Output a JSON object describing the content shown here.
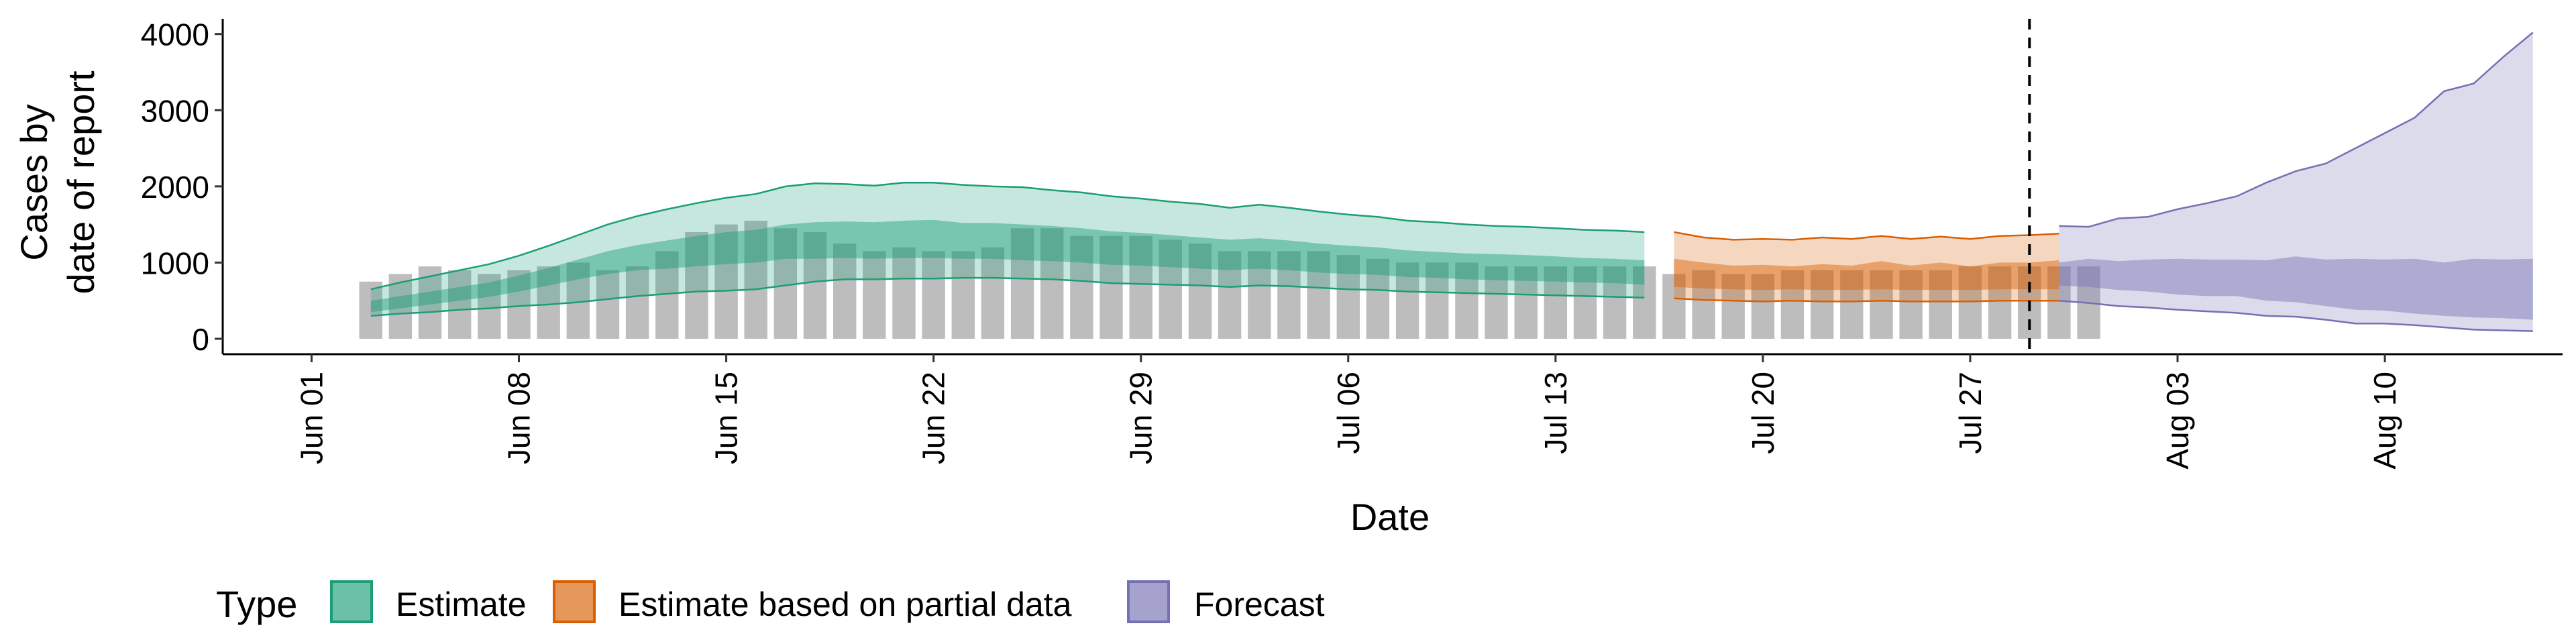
{
  "chart_data": {
    "type": "bar",
    "title": "",
    "xlabel": "Date",
    "ylabel_lines": [
      "Cases by",
      "date of report"
    ],
    "ylim": [
      0,
      4200
    ],
    "y_ticks": [
      0,
      1000,
      2000,
      3000,
      4000
    ],
    "x_range": [
      "2020-05-29",
      "2020-08-16"
    ],
    "x_ticks": [
      {
        "date": "2020-06-01",
        "label": "Jun 01"
      },
      {
        "date": "2020-06-08",
        "label": "Jun 08"
      },
      {
        "date": "2020-06-15",
        "label": "Jun 15"
      },
      {
        "date": "2020-06-22",
        "label": "Jun 22"
      },
      {
        "date": "2020-06-29",
        "label": "Jun 29"
      },
      {
        "date": "2020-07-06",
        "label": "Jul 06"
      },
      {
        "date": "2020-07-13",
        "label": "Jul 13"
      },
      {
        "date": "2020-07-20",
        "label": "Jul 20"
      },
      {
        "date": "2020-07-27",
        "label": "Jul 27"
      },
      {
        "date": "2020-08-03",
        "label": "Aug 03"
      },
      {
        "date": "2020-08-10",
        "label": "Aug 10"
      }
    ],
    "forecast_line_date": "2020-07-29",
    "reported_cases": {
      "start_date": "2020-06-03",
      "values": [
        750,
        850,
        950,
        900,
        850,
        900,
        950,
        1000,
        900,
        950,
        1150,
        1400,
        1500,
        1550,
        1450,
        1400,
        1250,
        1150,
        1200,
        1150,
        1150,
        1200,
        1450,
        1450,
        1350,
        1350,
        1350,
        1300,
        1250,
        1150,
        1150,
        1150,
        1150,
        1100,
        1050,
        1000,
        1000,
        1000,
        950,
        950,
        950,
        950,
        950,
        950,
        850,
        900,
        850,
        850,
        900,
        900,
        900,
        900,
        900,
        900,
        950,
        950,
        950,
        950,
        950
      ]
    },
    "series": [
      {
        "name": "Estimate",
        "start_date": "2020-06-03",
        "lower_90": [
          300,
          330,
          350,
          380,
          400,
          430,
          450,
          480,
          520,
          560,
          590,
          620,
          630,
          650,
          700,
          750,
          780,
          780,
          790,
          790,
          800,
          800,
          790,
          780,
          760,
          730,
          720,
          710,
          700,
          680,
          700,
          690,
          670,
          650,
          640,
          620,
          610,
          600,
          590,
          580,
          570,
          560,
          550,
          540
        ],
        "lower_50": [
          350,
          400,
          450,
          500,
          550,
          620,
          700,
          780,
          850,
          900,
          920,
          950,
          980,
          1000,
          1050,
          1050,
          1060,
          1050,
          1060,
          1060,
          1050,
          1050,
          1030,
          1020,
          1000,
          970,
          960,
          940,
          920,
          900,
          920,
          900,
          870,
          850,
          840,
          810,
          800,
          780,
          770,
          760,
          750,
          740,
          730,
          710
        ],
        "upper_50": [
          500,
          560,
          620,
          680,
          740,
          830,
          930,
          1040,
          1150,
          1230,
          1290,
          1350,
          1400,
          1430,
          1500,
          1530,
          1540,
          1530,
          1550,
          1560,
          1520,
          1520,
          1500,
          1480,
          1450,
          1410,
          1390,
          1360,
          1330,
          1300,
          1320,
          1290,
          1250,
          1220,
          1200,
          1160,
          1140,
          1120,
          1110,
          1100,
          1080,
          1060,
          1050,
          1030
        ],
        "upper_90": [
          650,
          740,
          820,
          900,
          980,
          1090,
          1220,
          1360,
          1500,
          1610,
          1700,
          1780,
          1850,
          1900,
          2000,
          2040,
          2030,
          2010,
          2050,
          2050,
          2020,
          2000,
          1990,
          1950,
          1920,
          1870,
          1840,
          1800,
          1770,
          1720,
          1760,
          1720,
          1670,
          1630,
          1600,
          1550,
          1530,
          1500,
          1480,
          1470,
          1450,
          1430,
          1420,
          1400
        ]
      },
      {
        "name": "Estimate based on partial data",
        "start_date": "2020-07-17",
        "lower_90": [
          530,
          510,
          500,
          490,
          500,
          490,
          490,
          500,
          490,
          490,
          490,
          500,
          500,
          500
        ],
        "lower_50": [
          680,
          660,
          650,
          640,
          650,
          640,
          640,
          650,
          640,
          640,
          640,
          650,
          650,
          650
        ],
        "upper_50": [
          1050,
          1000,
          960,
          970,
          950,
          980,
          960,
          1020,
          960,
          1000,
          950,
          1000,
          1000,
          1030
        ],
        "upper_90": [
          1400,
          1330,
          1300,
          1310,
          1300,
          1330,
          1310,
          1350,
          1310,
          1340,
          1310,
          1350,
          1360,
          1380
        ]
      },
      {
        "name": "Forecast",
        "start_date": "2020-07-30",
        "lower_90": [
          500,
          470,
          430,
          410,
          380,
          360,
          340,
          300,
          290,
          250,
          200,
          200,
          180,
          150,
          120,
          110,
          100
        ],
        "lower_50": [
          700,
          680,
          640,
          620,
          580,
          560,
          560,
          500,
          480,
          430,
          380,
          370,
          330,
          300,
          280,
          270,
          250
        ],
        "upper_50": [
          1000,
          1050,
          1020,
          1040,
          1050,
          1040,
          1040,
          1030,
          1080,
          1040,
          1050,
          1040,
          1050,
          1000,
          1050,
          1040,
          1050
        ],
        "upper_90": [
          1480,
          1470,
          1580,
          1600,
          1700,
          1780,
          1870,
          2050,
          2200,
          2300,
          2500,
          2700,
          2900,
          3250,
          3350,
          3700,
          4020
        ]
      }
    ],
    "legend": {
      "title": "Type",
      "position": "bottom-left",
      "entries": [
        "Estimate",
        "Estimate based on partial data",
        "Forecast"
      ]
    },
    "colors": {
      "reported_bars": "#bdbdbd",
      "Estimate": "#1b9e77",
      "Estimate based on partial data": "#d95f02",
      "Forecast": "#7570b3",
      "forecast_line": "#000000",
      "axis": "#000000"
    },
    "grid": false
  }
}
